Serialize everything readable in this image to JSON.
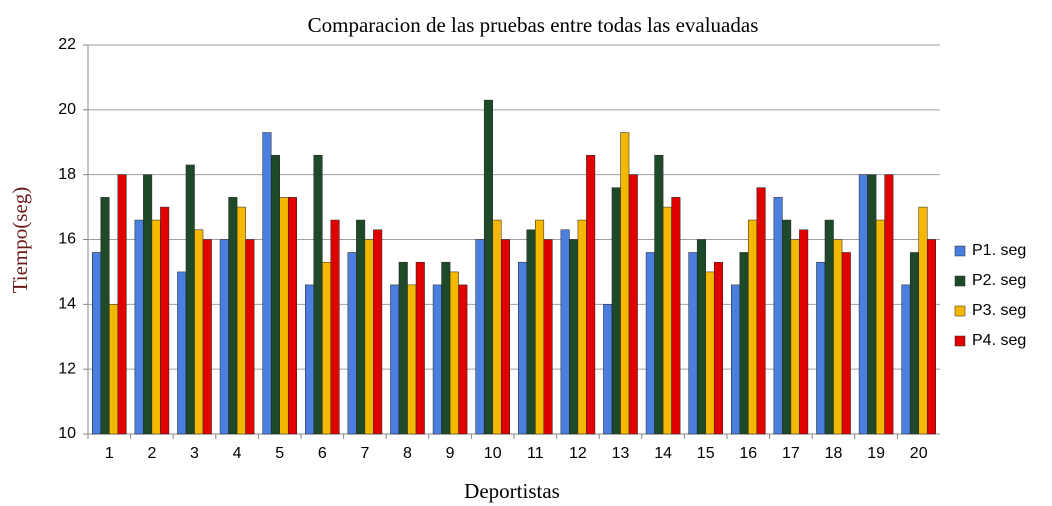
{
  "chart_data": {
    "type": "bar",
    "title": "Comparacion  de las  pruebas  entre  todas  las  evaluadas",
    "x_label": "Deportistas",
    "y_label": "Tiempo(seg)",
    "categories": [
      "1",
      "2",
      "3",
      "4",
      "5",
      "6",
      "7",
      "8",
      "9",
      "10",
      "11",
      "12",
      "13",
      "14",
      "15",
      "16",
      "17",
      "18",
      "19",
      "20"
    ],
    "series": [
      {
        "name": "P1. seg",
        "color": "#4a7fe0",
        "values": [
          15.6,
          16.6,
          15,
          16,
          19.3,
          14.6,
          15.6,
          14.6,
          14.6,
          16,
          15.3,
          16.3,
          14,
          15.6,
          15.6,
          14.6,
          17.3,
          15.3,
          18,
          14.6
        ]
      },
      {
        "name": "P2. seg",
        "color": "#1f4a2a",
        "values": [
          17.3,
          18,
          18.3,
          17.3,
          18.6,
          18.6,
          16.6,
          15.3,
          15.3,
          20.3,
          16.3,
          16,
          17.6,
          18.6,
          16,
          15.6,
          16.6,
          16.6,
          18,
          15.6
        ]
      },
      {
        "name": "P3. seg",
        "color": "#f5b800",
        "values": [
          14,
          16.6,
          16.3,
          17,
          17.3,
          15.3,
          16,
          14.6,
          15,
          16.6,
          16.6,
          16.6,
          19.3,
          17,
          15,
          16.6,
          16,
          16,
          16.6,
          17
        ]
      },
      {
        "name": "P4. seg",
        "color": "#e00000",
        "values": [
          18,
          17,
          16,
          16,
          17.3,
          16.6,
          16.3,
          15.3,
          14.6,
          16,
          16,
          18.6,
          18,
          17.3,
          15.3,
          17.6,
          16.3,
          15.6,
          18,
          16
        ]
      }
    ],
    "ylim": [
      10,
      22
    ],
    "yticks": [
      10,
      12,
      14,
      16,
      18,
      20,
      22
    ],
    "grid": true,
    "legend": "right"
  }
}
